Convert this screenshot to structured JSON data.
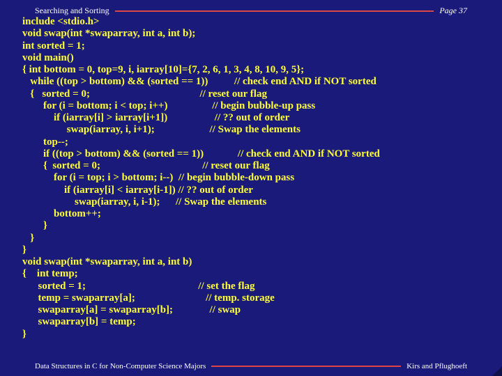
{
  "header": {
    "title": "Searching and Sorting",
    "page": "Page 37"
  },
  "code": "include <stdio.h>\nvoid swap(int *swaparray, int a, int b);\nint sorted = 1;\nvoid main()\n{ int bottom = 0, top=9, i, iarray[10]={7, 2, 6, 1, 3, 4, 8, 10, 9, 5};\n   while ((top > bottom) && (sorted == 1))          // check end AND if NOT sorted\n   {   sorted = 0;                                          // reset our flag\n        for (i = bottom; i < top; i++)                 // begin bubble-up pass\n            if (iarray[i] > iarray[i+1])                  // ?? out of order\n                 swap(iarray, i, i+1);                     // Swap the elements\n        top--;\n        if ((top > bottom) && (sorted == 1))             // check end AND if NOT sorted\n        {  sorted = 0;                                       // reset our flag\n            for (i = top; i > bottom; i--)  // begin bubble-down pass\n                if (iarray[i] < iarray[i-1]) // ?? out of order\n                    swap(iarray, i, i-1);      // Swap the elements\n            bottom++;\n        }\n   }\n}\nvoid swap(int *swaparray, int a, int b)\n{    int temp;\n      sorted = 1;                                           // set the flag\n      temp = swaparray[a];                           // temp. storage\n      swaparray[a] = swaparray[b];              // swap\n      swaparray[b] = temp;\n}",
  "footer": {
    "left": "Data Structures in C for Non-Computer Science Majors",
    "right": "Kirs and Pflughoeft"
  }
}
